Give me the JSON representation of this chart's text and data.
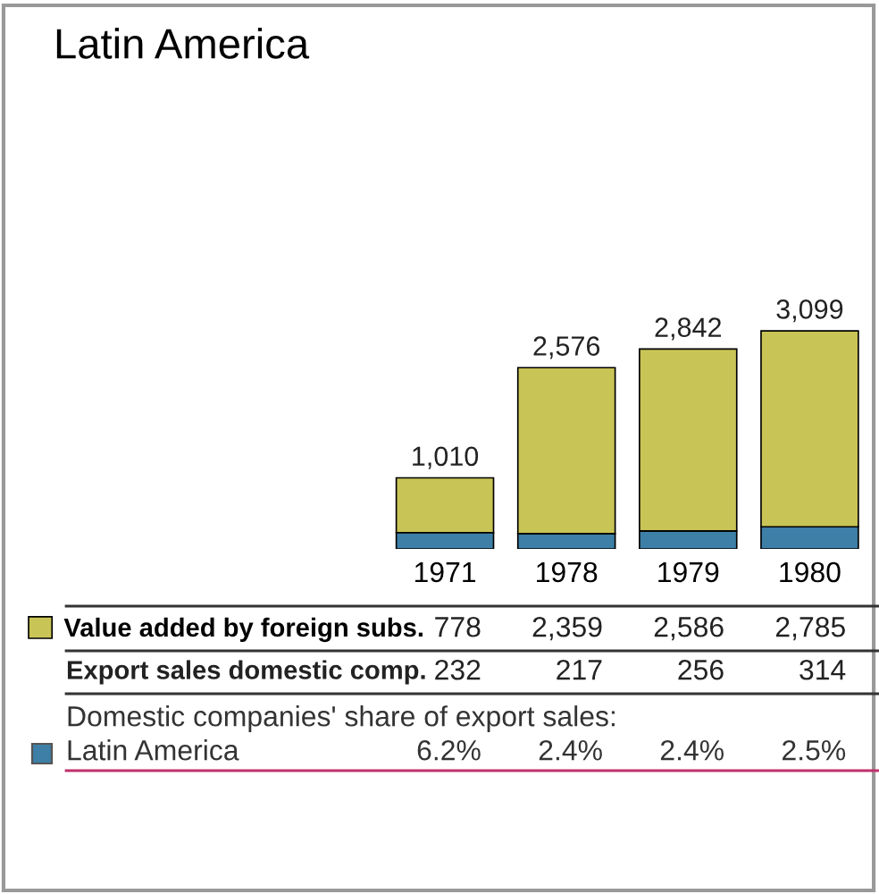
{
  "chart_data": {
    "type": "bar",
    "title": "Latin America",
    "stacked": true,
    "categories": [
      "1971",
      "1978",
      "1979",
      "1980"
    ],
    "series": [
      {
        "color": "#3d7fa6",
        "values": [
          232,
          217,
          256,
          314
        ],
        "value_labels": [
          "232",
          "217",
          "256",
          "314"
        ]
      },
      {
        "name": "Value added by foreign subs.",
        "color": "#c9c456",
        "values": [
          778,
          2359,
          2586,
          2785
        ],
        "value_labels": [
          "778",
          "2,359",
          "2,586",
          "2,785"
        ]
      }
    ],
    "totals": [
      "1,010",
      "2,576",
      "2,842",
      "3,099"
    ],
    "legend": "bottom left",
    "annotations": [
      "Export sales domestic comp.",
      "Domestic companies' share of export sales:",
      "Latin America",
      "6.2%",
      "2.4%",
      "2.4%",
      "2.5%"
    ]
  }
}
